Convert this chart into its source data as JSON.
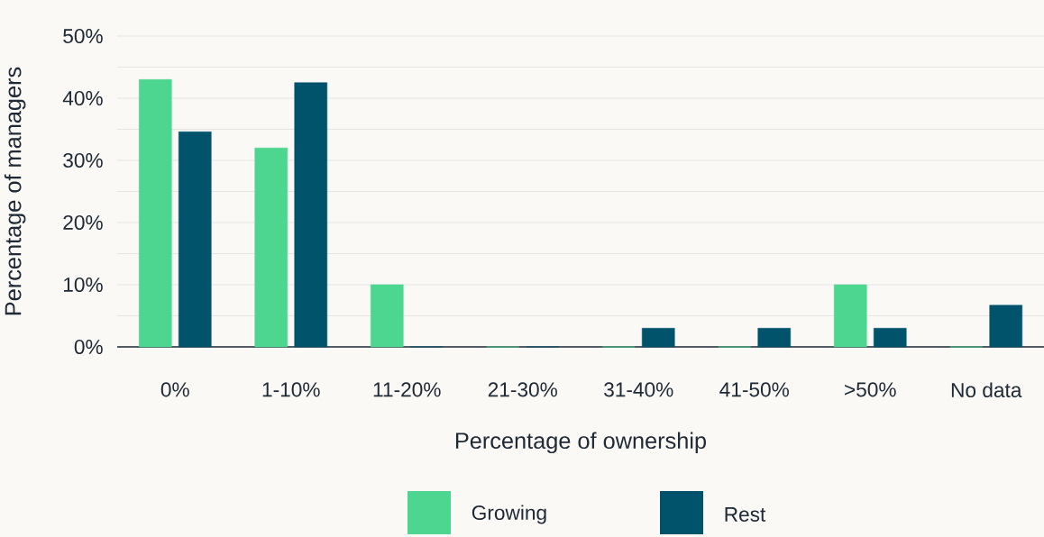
{
  "chart_data": {
    "type": "bar",
    "xlabel": "Percentage of ownership",
    "ylabel": "Percentage of managers",
    "categories": [
      "0%",
      "1-10%",
      "11-20%",
      "21-30%",
      "31-40%",
      "41-50%",
      ">50%",
      "No data"
    ],
    "series": [
      {
        "name": "Growing",
        "color": "#4cd68f",
        "values": [
          43,
          32,
          10,
          0,
          0,
          0,
          10,
          0
        ]
      },
      {
        "name": "Rest",
        "color": "#01536b",
        "values": [
          34.6,
          42.5,
          0,
          0,
          3,
          3,
          3,
          6.7
        ]
      }
    ],
    "ylim": [
      0,
      50
    ],
    "yticks": [
      {
        "value": 0,
        "label": "0%"
      },
      {
        "value": 5,
        "label": null
      },
      {
        "value": 10,
        "label": "10%"
      },
      {
        "value": 15,
        "label": null
      },
      {
        "value": 20,
        "label": "20%"
      },
      {
        "value": 25,
        "label": null
      },
      {
        "value": 30,
        "label": "30%"
      },
      {
        "value": 35,
        "label": null
      },
      {
        "value": 40,
        "label": "40%"
      },
      {
        "value": 45,
        "label": null
      },
      {
        "value": 50,
        "label": "50%"
      }
    ],
    "grid": "y",
    "legend": "bottom"
  }
}
